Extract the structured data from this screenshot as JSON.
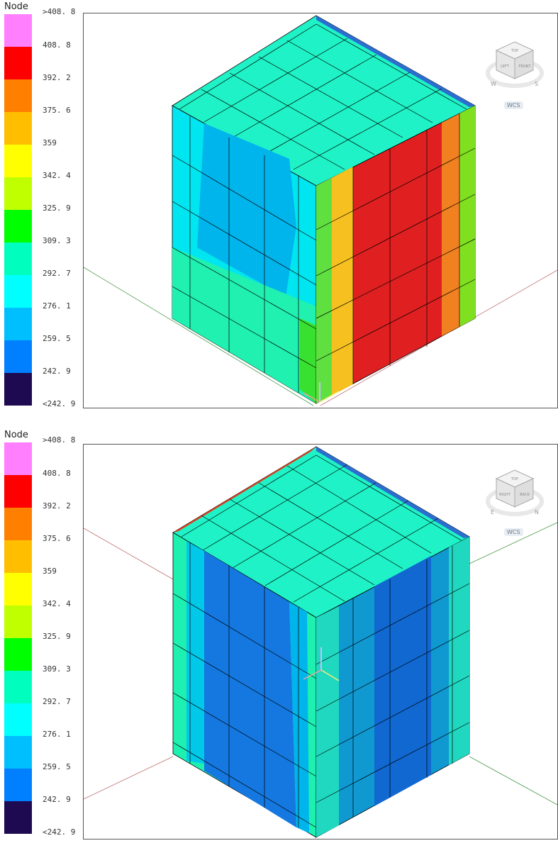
{
  "legend": {
    "title": "Node",
    "labels": [
      ">408. 8",
      "408. 8",
      "392. 2",
      "375. 6",
      "359",
      "342. 4",
      "325. 9",
      "309. 3",
      "292. 7",
      "276. 1",
      "259. 5",
      "242. 9",
      "<242. 9"
    ],
    "colors": [
      "#ff7fff",
      "#ff0000",
      "#ff7f00",
      "#ffbf00",
      "#ffff00",
      "#bfff00",
      "#00ff00",
      "#00ffbf",
      "#00ffff",
      "#00bfff",
      "#007fff",
      "#1e0a50"
    ]
  },
  "panels": [
    {
      "viewcube": {
        "faces": [
          "TOP",
          "LEFT",
          "FRONT"
        ],
        "compass": [
          "W",
          "S"
        ]
      },
      "wcs_label": "WCS"
    },
    {
      "viewcube": {
        "faces": [
          "TOP",
          "RIGHT",
          "BACK"
        ],
        "compass": [
          "E",
          "N"
        ]
      },
      "wcs_label": "WCS"
    }
  ]
}
